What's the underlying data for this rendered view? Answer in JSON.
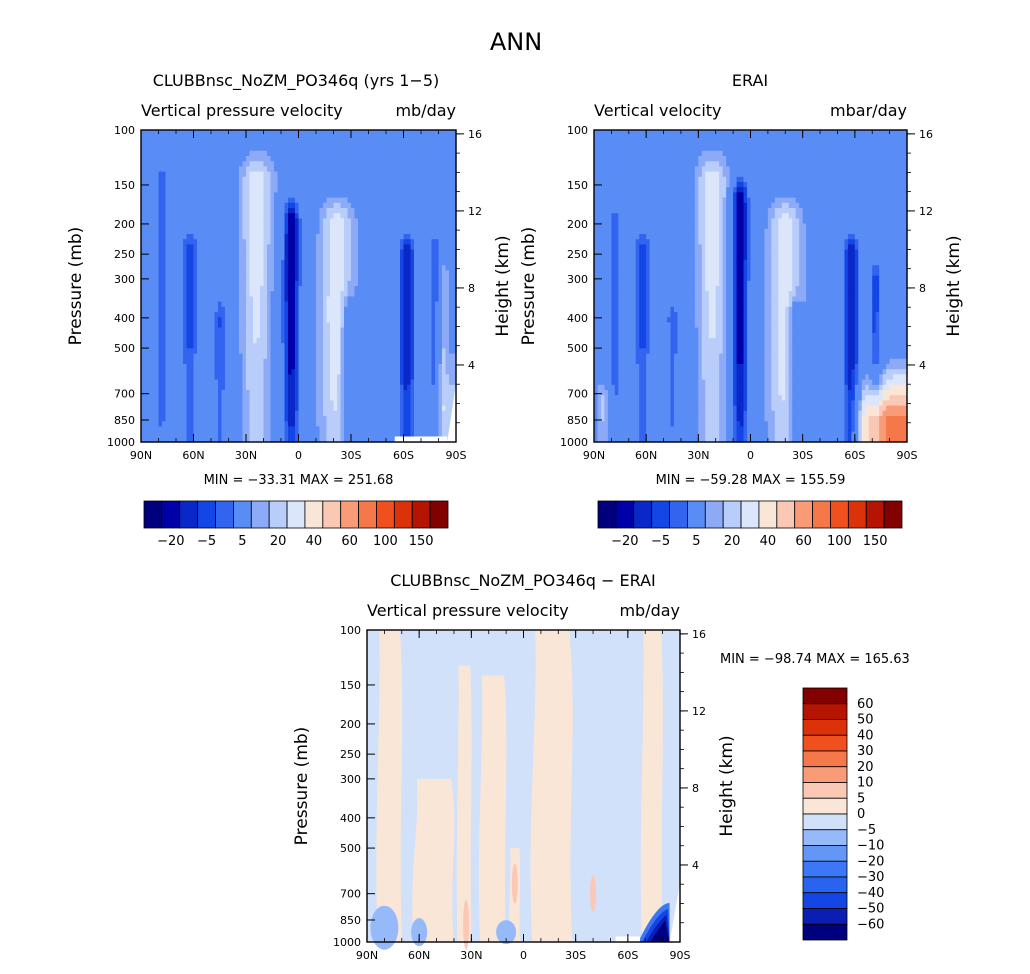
{
  "page_title": "ANN",
  "colors": {
    "diverging": [
      "#00007f",
      "#0000a8",
      "#0a28c8",
      "#1446e6",
      "#3264f0",
      "#5a8cf5",
      "#8caaf5",
      "#b9cdfa",
      "#dce6fa",
      "#fae6d7",
      "#fac8b4",
      "#fa9b78",
      "#f5784b",
      "#f0501e",
      "#dc320a",
      "#b41400",
      "#820000"
    ],
    "diff": [
      "#00007f",
      "#0a1eb4",
      "#1446e6",
      "#2864f0",
      "#3c78f5",
      "#6496f5",
      "#96b9fa",
      "#d2e1fa",
      "#fae6d7",
      "#fac8b4",
      "#fa9b78",
      "#f5784b",
      "#f0501e",
      "#dc320a",
      "#b41400",
      "#820000"
    ]
  },
  "chart_data": [
    {
      "type": "heatmap",
      "title": "CLUBBnsc_NoZM_PO346q (yrs 1−5)",
      "subtitle_left": "Vertical pressure velocity",
      "subtitle_right": "mb/day",
      "xlabel": "",
      "ylabel": "Pressure (mb)",
      "ylabel_right": "Height (km)",
      "x_ticks": [
        "90N",
        "60N",
        "30N",
        "0",
        "30S",
        "60S",
        "90S"
      ],
      "x_range": [
        90,
        -90
      ],
      "y_ticks": [
        100,
        150,
        200,
        250,
        300,
        400,
        500,
        700,
        850,
        1000
      ],
      "y_range": [
        1000,
        100
      ],
      "y_scale": "log",
      "height_ticks": [
        4,
        8,
        12,
        16
      ],
      "stats": "MIN = −33.31   MAX = 251.68",
      "min": -33.31,
      "max": 251.68,
      "colorbar_labels": [
        "−20",
        "−5",
        "5",
        "20",
        "40",
        "60",
        "100",
        "150"
      ],
      "colorbar_orientation": "horizontal",
      "ascent_bands": [
        {
          "lat": 78,
          "width": 3,
          "p_top": 150,
          "strength": 0.55
        },
        {
          "lat": 62,
          "width": 5,
          "p_top": 250,
          "strength": 0.65
        },
        {
          "lat": 45,
          "width": 4,
          "p_top": 400,
          "strength": 0.55
        },
        {
          "lat": 4,
          "width": 5,
          "p_top": 200,
          "strength": 1.0
        },
        {
          "lat": -28,
          "width": 4,
          "p_top": 400,
          "strength": 0.45
        },
        {
          "lat": -62,
          "width": 5,
          "p_top": 250,
          "strength": 0.8
        },
        {
          "lat": -78,
          "width": 4,
          "p_top": 250,
          "strength": 0.55
        }
      ],
      "descent_bands": [
        {
          "lat": 24,
          "width": 8,
          "p_top": 150,
          "strength": 0.9
        },
        {
          "lat": -22,
          "width": 9,
          "p_top": 200,
          "strength": 0.9
        },
        {
          "lat": -82,
          "width": 3,
          "p_top": 300,
          "strength": 0.6
        }
      ],
      "polar_descent": {
        "lat_start": -82,
        "p_bottom": 600,
        "strength": 0.2
      },
      "missing_region": {
        "lat_start": -55,
        "lat_end": -85,
        "p_top": 960
      }
    },
    {
      "type": "heatmap",
      "title": "ERAI",
      "subtitle_left": "Vertical velocity",
      "subtitle_right": "mbar/day",
      "xlabel": "",
      "ylabel": "Pressure (mb)",
      "ylabel_right": "Height (km)",
      "x_ticks": [
        "90N",
        "60N",
        "30N",
        "0",
        "30S",
        "60S",
        "90S"
      ],
      "x_range": [
        90,
        -90
      ],
      "y_ticks": [
        100,
        150,
        200,
        250,
        300,
        400,
        500,
        700,
        850,
        1000
      ],
      "y_range": [
        1000,
        100
      ],
      "y_scale": "log",
      "height_ticks": [
        4,
        8,
        12,
        16
      ],
      "stats": "MIN = −59.28   MAX = 155.59",
      "min": -59.28,
      "max": 155.59,
      "colorbar_labels": [
        "−20",
        "−5",
        "5",
        "20",
        "40",
        "60",
        "100",
        "150"
      ],
      "colorbar_orientation": "horizontal",
      "ascent_bands": [
        {
          "lat": 78,
          "width": 3,
          "p_top": 200,
          "strength": 0.5
        },
        {
          "lat": 62,
          "width": 5,
          "p_top": 250,
          "strength": 0.65
        },
        {
          "lat": 45,
          "width": 4,
          "p_top": 400,
          "strength": 0.5
        },
        {
          "lat": 6,
          "width": 5,
          "p_top": 170,
          "strength": 1.0
        },
        {
          "lat": -25,
          "width": 4,
          "p_top": 400,
          "strength": 0.45
        },
        {
          "lat": -58,
          "width": 5,
          "p_top": 250,
          "strength": 0.8
        },
        {
          "lat": -72,
          "width": 4,
          "p_top": 300,
          "strength": 0.55
        }
      ],
      "descent_bands": [
        {
          "lat": 22,
          "width": 8,
          "p_top": 150,
          "strength": 0.9
        },
        {
          "lat": -20,
          "width": 9,
          "p_top": 200,
          "strength": 0.9
        },
        {
          "lat": 85,
          "width": 4,
          "p_top": 750,
          "strength": 0.5
        }
      ],
      "polar_descent": {
        "lat_start": -65,
        "p_bottom": 650,
        "strength": 0.75
      },
      "missing_region": null
    },
    {
      "type": "heatmap",
      "title": "CLUBBnsc_NoZM_PO346q − ERAI",
      "subtitle_left": "Vertical pressure velocity",
      "subtitle_right": "mb/day",
      "xlabel": "",
      "ylabel": "Pressure (mb)",
      "ylabel_right": "Height (km)",
      "x_ticks": [
        "90N",
        "60N",
        "30N",
        "0",
        "30S",
        "60S",
        "90S"
      ],
      "x_range": [
        90,
        -90
      ],
      "y_ticks": [
        100,
        150,
        200,
        250,
        300,
        400,
        500,
        700,
        850,
        1000
      ],
      "y_range": [
        1000,
        100
      ],
      "y_scale": "log",
      "height_ticks": [
        4,
        8,
        12,
        16
      ],
      "stats": "MIN = −98.74   MAX = 165.63",
      "min": -98.74,
      "max": 165.63,
      "colorbar_labels": [
        "60",
        "50",
        "40",
        "30",
        "20",
        "10",
        "5",
        "0",
        "−5",
        "−10",
        "−20",
        "−30",
        "−40",
        "−50",
        "−60"
      ],
      "colorbar_orientation": "vertical",
      "positive_bands": [
        {
          "lat_from": 84,
          "lat_to": 70,
          "p_top": 100
        },
        {
          "lat_from": 63,
          "lat_to": 40,
          "p_top": 300
        },
        {
          "lat_from": 38,
          "lat_to": 30,
          "p_top": 130
        },
        {
          "lat_from": 25,
          "lat_to": 10,
          "p_top": 140
        },
        {
          "lat_from": 8,
          "lat_to": 2,
          "p_top": 500
        },
        {
          "lat_from": -5,
          "lat_to": -28,
          "p_top": 100
        },
        {
          "lat_from": -68,
          "lat_to": -80,
          "p_top": 100
        }
      ],
      "strong_negative": {
        "lat_start": -66,
        "lat_end": -84,
        "p_top": 750
      },
      "missing_region": {
        "lat_start": -53,
        "lat_end": -67,
        "p_top": 960
      }
    }
  ]
}
